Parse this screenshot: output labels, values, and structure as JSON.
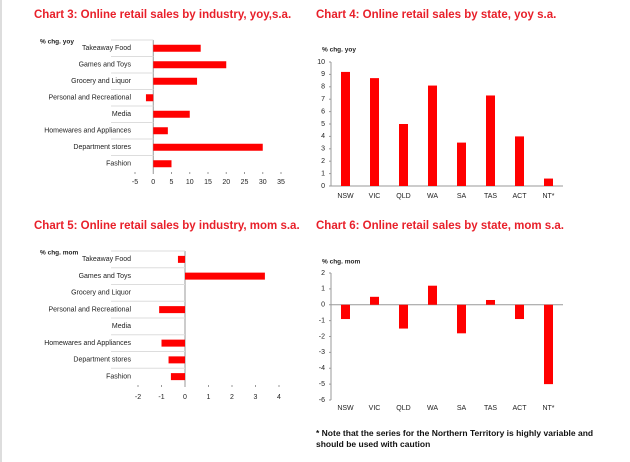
{
  "chart_data": [
    {
      "type": "bar",
      "orientation": "horizontal",
      "title": "Chart 3: Online retail sales by industry, yoy,s.a.",
      "axis_label": "% chg. yoy",
      "categories": [
        "Takeaway Food",
        "Games and Toys",
        "Grocery and Liquor",
        "Personal and Recreational",
        "Media",
        "Homewares and Appliances",
        "Department stores",
        "Fashion"
      ],
      "values": [
        13,
        20,
        12,
        -2,
        10,
        4,
        30,
        5
      ],
      "color": "#ff0000",
      "xlim": [
        -5,
        35
      ],
      "xticks": [
        -5,
        0,
        5,
        10,
        15,
        20,
        25,
        30,
        35
      ]
    },
    {
      "type": "bar",
      "orientation": "vertical",
      "title": "Chart 4: Online retail sales by state, yoy s.a.",
      "axis_label": "% chg. yoy",
      "categories": [
        "NSW",
        "VIC",
        "QLD",
        "WA",
        "SA",
        "TAS",
        "ACT",
        "NT*"
      ],
      "values": [
        9.2,
        8.7,
        5.0,
        8.1,
        3.5,
        7.3,
        4.0,
        0.6
      ],
      "color": "#ff0000",
      "ylim": [
        0,
        10
      ],
      "yticks": [
        0,
        1,
        2,
        3,
        4,
        5,
        6,
        7,
        8,
        9,
        10
      ]
    },
    {
      "type": "bar",
      "orientation": "horizontal",
      "title": "Chart 5: Online retail sales by industry, mom s.a.",
      "axis_label": "% chg. mom",
      "categories": [
        "Takeaway Food",
        "Games and Toys",
        "Grocery and Liquor",
        "Personal and Recreational",
        "Media",
        "Homewares and Appliances",
        "Department stores",
        "Fashion"
      ],
      "values": [
        -0.3,
        3.4,
        0,
        -1.1,
        0,
        -1.0,
        -0.7,
        -0.6
      ],
      "color": "#ff0000",
      "xlim": [
        -2,
        4
      ],
      "xticks": [
        -2,
        -1,
        0,
        1,
        2,
        3,
        4
      ]
    },
    {
      "type": "bar",
      "orientation": "vertical",
      "title": "Chart 6: Online retail sales by state, mom s.a.",
      "axis_label": "% chg. mom",
      "categories": [
        "NSW",
        "VIC",
        "QLD",
        "WA",
        "SA",
        "TAS",
        "ACT",
        "NT*"
      ],
      "values": [
        -0.9,
        0.5,
        -1.5,
        1.2,
        -1.8,
        0.3,
        -0.9,
        -5.0
      ],
      "color": "#ff0000",
      "ylim": [
        -6,
        2
      ],
      "yticks": [
        -6,
        -5,
        -4,
        -3,
        -2,
        -1,
        0,
        1,
        2
      ]
    }
  ],
  "note": "* Note that the series for the Northern Territory is highly variable and should be used with caution"
}
